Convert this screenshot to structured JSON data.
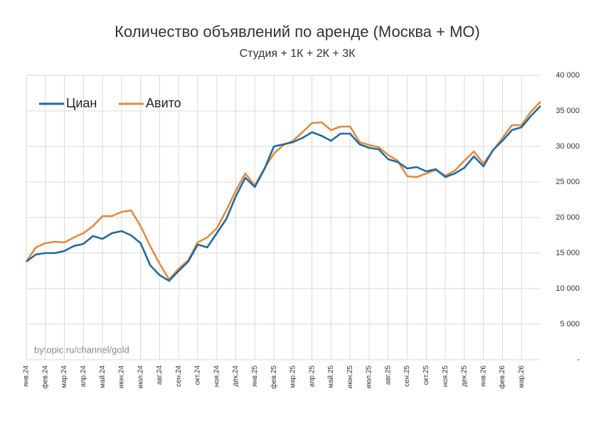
{
  "chart_data": {
    "type": "line",
    "title": "Количество объявлений по аренде (Москва + МО)",
    "subtitle": "Студия + 1К + 2К + 3К",
    "annotation": "bytopic.ru/channel/gold",
    "categories": [
      "янв.24",
      null,
      "фев.24",
      null,
      "мар.24",
      null,
      "апр.24",
      null,
      "май.24",
      null,
      "июн.24",
      null,
      "июл.24",
      null,
      "авг.24",
      null,
      "сен.24",
      null,
      "окт.24",
      null,
      "ноя.24",
      null,
      "дек.24",
      null,
      "янв.25",
      null,
      "фев.25",
      null,
      "мар.25",
      null,
      "апр.25",
      null,
      "май.25",
      null,
      "июн.25",
      null,
      "июл.25",
      null,
      "авг.25",
      null,
      "сен.25",
      null,
      "окт.25",
      null,
      "ноя.25",
      null,
      "дек.25",
      null,
      "янв.26",
      null,
      "фев.26",
      null,
      "мар.26",
      null,
      null
    ],
    "series": [
      {
        "name": "Циан",
        "color": "#1f6aa5",
        "values": [
          13800,
          14800,
          15000,
          15000,
          15300,
          16000,
          16300,
          17400,
          17000,
          17800,
          18100,
          17500,
          16400,
          13300,
          11900,
          11100,
          12500,
          13800,
          16200,
          15800,
          17800,
          19800,
          23000,
          25600,
          24300,
          26800,
          30000,
          30300,
          30600,
          31200,
          32000,
          31500,
          30800,
          31800,
          31800,
          30300,
          29800,
          29600,
          28200,
          27800,
          26900,
          27100,
          26500,
          26800,
          25700,
          26200,
          27000,
          28600,
          27200,
          29500,
          30800,
          32300,
          32700,
          34300,
          35700
        ]
      },
      {
        "name": "Авито",
        "color": "#e58a3a",
        "values": [
          13800,
          15800,
          16400,
          16600,
          16500,
          17200,
          17800,
          18800,
          20200,
          20200,
          20800,
          21000,
          18800,
          16000,
          13500,
          11300,
          12800,
          14000,
          16500,
          17200,
          18500,
          21000,
          23800,
          26200,
          24500,
          26900,
          29000,
          30200,
          30800,
          32000,
          33300,
          33400,
          32300,
          32800,
          32800,
          30600,
          30200,
          29900,
          28800,
          28000,
          25800,
          25700,
          26200,
          26700,
          25900,
          26600,
          28000,
          29300,
          27600,
          29400,
          31200,
          33000,
          33000,
          34900,
          36300
        ]
      }
    ],
    "ylim": [
      0,
      40000
    ],
    "yticks": [
      {
        "value": 0,
        "label": "-"
      },
      {
        "value": 5000,
        "label": "5 000"
      },
      {
        "value": 10000,
        "label": "10 000"
      },
      {
        "value": 15000,
        "label": "15 000"
      },
      {
        "value": 20000,
        "label": "20 000"
      },
      {
        "value": 25000,
        "label": "25 000"
      },
      {
        "value": 30000,
        "label": "30 000"
      },
      {
        "value": 35000,
        "label": "35 000"
      },
      {
        "value": 40000,
        "label": "40 000"
      }
    ],
    "grid": true,
    "legend": "upper left"
  }
}
